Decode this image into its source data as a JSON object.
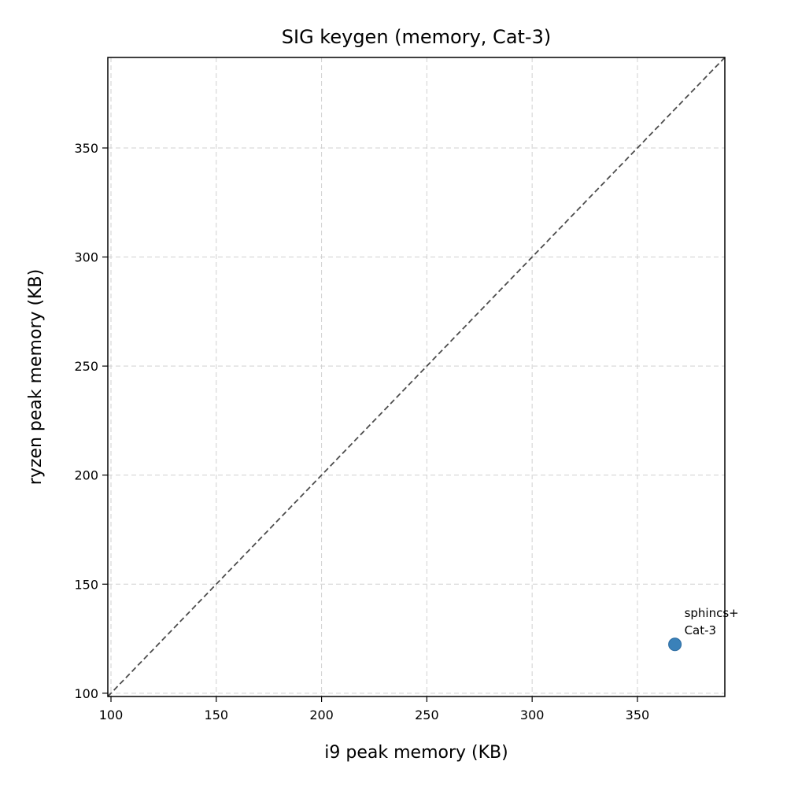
{
  "chart_data": {
    "type": "scatter",
    "title": "SIG keygen (memory, Cat-3)",
    "xlabel": "i9 peak memory (KB)",
    "ylabel": "ryzen peak memory (KB)",
    "xlim": [
      98.5,
      391.5
    ],
    "ylim": [
      98.5,
      391.5
    ],
    "xticks": [
      100,
      150,
      200,
      250,
      300,
      350
    ],
    "yticks": [
      100,
      150,
      200,
      250,
      300,
      350
    ],
    "grid": true,
    "reference_line": "y = x",
    "point_color": "#2f7ab5",
    "points": [
      {
        "x": 367.8,
        "y": 122.4,
        "label_line1": "sphincs+",
        "label_line2": "Cat-3"
      }
    ]
  }
}
